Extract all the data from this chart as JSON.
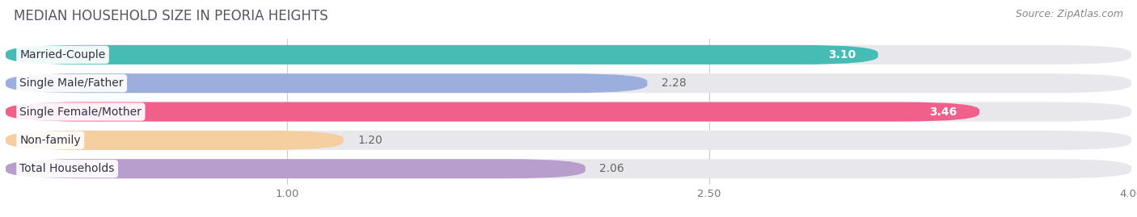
{
  "title": "MEDIAN HOUSEHOLD SIZE IN PEORIA HEIGHTS",
  "source": "Source: ZipAtlas.com",
  "categories": [
    "Married-Couple",
    "Single Male/Father",
    "Single Female/Mother",
    "Non-family",
    "Total Households"
  ],
  "values": [
    3.1,
    2.28,
    3.46,
    1.2,
    2.06
  ],
  "bar_colors": [
    "#45bdb5",
    "#9baedd",
    "#f0608a",
    "#f5cfa0",
    "#b89ecc"
  ],
  "bar_bg_color": "#e8e8ec",
  "xticks": [
    1.0,
    2.5,
    4.0
  ],
  "xmin": 0.0,
  "xmax": 4.0,
  "value_inside_color": "#ffffff",
  "value_outside_color": "#666666",
  "value_threshold": 3.0,
  "label_fontsize": 10,
  "value_fontsize": 10,
  "title_fontsize": 12,
  "source_fontsize": 9,
  "background_color": "#ffffff",
  "title_color": "#555566",
  "source_color": "#888888"
}
